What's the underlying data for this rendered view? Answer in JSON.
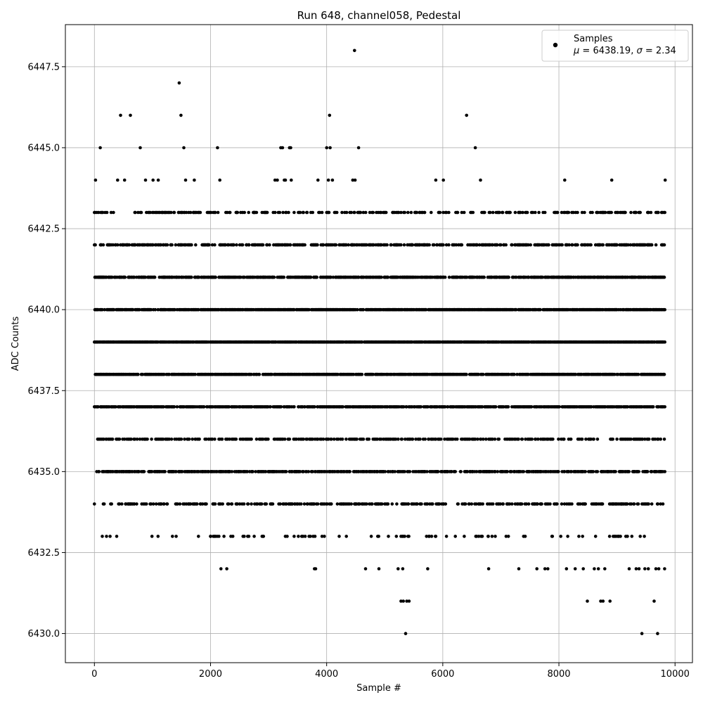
{
  "chart_data": {
    "type": "scatter",
    "title": "Run 648, channel058, Pedestal",
    "xlabel": "Sample #",
    "ylabel": "ADC Counts",
    "xlim": [
      -500,
      10300
    ],
    "ylim": [
      6429.1,
      6448.8
    ],
    "xticks": [
      0,
      2000,
      4000,
      6000,
      8000,
      10000
    ],
    "xtick_labels": [
      "0",
      "2000",
      "4000",
      "6000",
      "8000",
      "10000"
    ],
    "yticks": [
      6430.0,
      6432.5,
      6435.0,
      6437.5,
      6440.0,
      6442.5,
      6445.0,
      6447.5
    ],
    "ytick_labels": [
      "6430.0",
      "6432.5",
      "6435.0",
      "6437.5",
      "6440.0",
      "6442.5",
      "6445.0",
      "6447.5"
    ],
    "grid": true,
    "legend_position": "top-right",
    "series": [
      {
        "name": "Samples",
        "stats_label": "μ = 6438.19, σ = 2.34",
        "color": "#000000",
        "marker": "circle",
        "sample_range": [
          0,
          9830
        ],
        "dense_levels": [
          {
            "y": 6441,
            "density": 0.55
          },
          {
            "y": 6440,
            "density": 0.6
          },
          {
            "y": 6439,
            "density": 0.7
          },
          {
            "y": 6438,
            "density": 0.6
          },
          {
            "y": 6437,
            "density": 0.55
          },
          {
            "y": 6435,
            "density": 0.45
          },
          {
            "y": 6442,
            "density": 0.35
          },
          {
            "y": 6436,
            "density": 0.28
          },
          {
            "y": 6443,
            "density": 0.22
          },
          {
            "y": 6434,
            "density": 0.25
          },
          {
            "y": 6433,
            "density": 0.06
          }
        ],
        "points": [
          [
            20,
            6444
          ],
          [
            100,
            6445
          ],
          [
            270,
            6433
          ],
          [
            400,
            6444
          ],
          [
            450,
            6446
          ],
          [
            520,
            6444
          ],
          [
            620,
            6446
          ],
          [
            790,
            6445
          ],
          [
            880,
            6444
          ],
          [
            1010,
            6444
          ],
          [
            1100,
            6444
          ],
          [
            1460,
            6447
          ],
          [
            1490,
            6446
          ],
          [
            1540,
            6445
          ],
          [
            1570,
            6444
          ],
          [
            1720,
            6444
          ],
          [
            2000,
            6433
          ],
          [
            2120,
            6445
          ],
          [
            2160,
            6444
          ],
          [
            2180,
            6432
          ],
          [
            2280,
            6432
          ],
          [
            2350,
            6433
          ],
          [
            2580,
            6433
          ],
          [
            2660,
            6433
          ],
          [
            3110,
            6444
          ],
          [
            3150,
            6444
          ],
          [
            3210,
            6445
          ],
          [
            3240,
            6445
          ],
          [
            3270,
            6444
          ],
          [
            3290,
            6444
          ],
          [
            3360,
            6445
          ],
          [
            3380,
            6445
          ],
          [
            3390,
            6444
          ],
          [
            3440,
            6433
          ],
          [
            3570,
            6433
          ],
          [
            3630,
            6433
          ],
          [
            3790,
            6432
          ],
          [
            3810,
            6432
          ],
          [
            3850,
            6444
          ],
          [
            3920,
            6433
          ],
          [
            3960,
            6433
          ],
          [
            4000,
            6445
          ],
          [
            4030,
            6444
          ],
          [
            4050,
            6446
          ],
          [
            4060,
            6445
          ],
          [
            4100,
            6444
          ],
          [
            4340,
            6433
          ],
          [
            4450,
            6444
          ],
          [
            4480,
            6448
          ],
          [
            4490,
            6444
          ],
          [
            4550,
            6445
          ],
          [
            4670,
            6432
          ],
          [
            4880,
            6433
          ],
          [
            4900,
            6432
          ],
          [
            5230,
            6432
          ],
          [
            5280,
            6431
          ],
          [
            5310,
            6432
          ],
          [
            5320,
            6431
          ],
          [
            5360,
            6430
          ],
          [
            5380,
            6431
          ],
          [
            5420,
            6431
          ],
          [
            5740,
            6432
          ],
          [
            5880,
            6433
          ],
          [
            5880,
            6444
          ],
          [
            6010,
            6444
          ],
          [
            6370,
            6433
          ],
          [
            6410,
            6446
          ],
          [
            6560,
            6445
          ],
          [
            6620,
            6433
          ],
          [
            6650,
            6444
          ],
          [
            6660,
            6433
          ],
          [
            6780,
            6433
          ],
          [
            6790,
            6432
          ],
          [
            7090,
            6433
          ],
          [
            7130,
            6433
          ],
          [
            7310,
            6432
          ],
          [
            7420,
            6433
          ],
          [
            7620,
            6432
          ],
          [
            7760,
            6432
          ],
          [
            7810,
            6432
          ],
          [
            8100,
            6444
          ],
          [
            8130,
            6432
          ],
          [
            8280,
            6432
          ],
          [
            8420,
            6432
          ],
          [
            8490,
            6431
          ],
          [
            8610,
            6432
          ],
          [
            8680,
            6432
          ],
          [
            8720,
            6431
          ],
          [
            8760,
            6431
          ],
          [
            8790,
            6432
          ],
          [
            8880,
            6431
          ],
          [
            8910,
            6444
          ],
          [
            9210,
            6432
          ],
          [
            9330,
            6432
          ],
          [
            9380,
            6432
          ],
          [
            9430,
            6430
          ],
          [
            9480,
            6432
          ],
          [
            9540,
            6432
          ],
          [
            9640,
            6431
          ],
          [
            9670,
            6432
          ],
          [
            9700,
            6430
          ],
          [
            9720,
            6432
          ],
          [
            9820,
            6432
          ],
          [
            9830,
            6444
          ],
          [
            9780,
            6443
          ],
          [
            9400,
            6433
          ],
          [
            9180,
            6433
          ],
          [
            9060,
            6433
          ],
          [
            9000,
            6433
          ],
          [
            8970,
            6433
          ]
        ]
      }
    ]
  }
}
